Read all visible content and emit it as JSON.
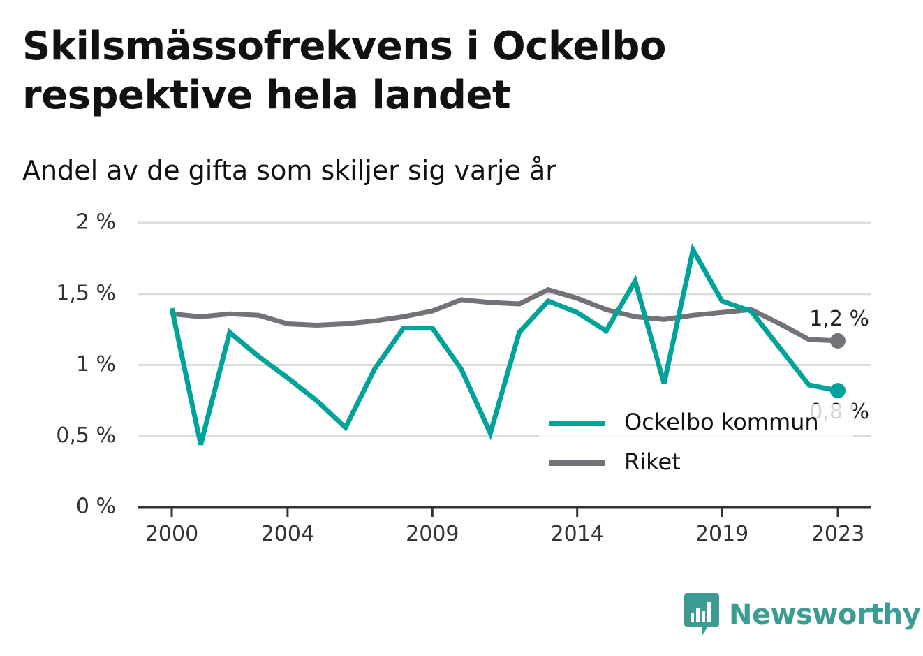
{
  "title": "Skilsmässofrekvens i Ockelbo respektive hela landet",
  "subtitle": "Andel av de gifta som skiljer sig varje år",
  "brand": {
    "name": "Newsworthy",
    "logo_icon": "bar-chart-speech-bubble-icon"
  },
  "colors": {
    "ockelbo": "#00a39a",
    "riket": "#737278",
    "grid": "#dcdcdc",
    "axis": "#333333",
    "brand": "#3c9c94"
  },
  "chart_data": {
    "type": "line",
    "title": "Skilsmässofrekvens i Ockelbo respektive hela landet",
    "subtitle": "Andel av de gifta som skiljer sig varje år",
    "xlabel": "",
    "ylabel": "",
    "x": [
      2000,
      2001,
      2002,
      2003,
      2004,
      2005,
      2006,
      2007,
      2008,
      2009,
      2010,
      2011,
      2012,
      2013,
      2014,
      2015,
      2016,
      2017,
      2018,
      2019,
      2020,
      2021,
      2022,
      2023
    ],
    "x_ticks": [
      2000,
      2004,
      2009,
      2014,
      2019,
      2023
    ],
    "x_tick_labels": [
      "2000",
      "2004",
      "2009",
      "2014",
      "2019",
      "2023"
    ],
    "ylim": [
      0,
      2
    ],
    "y_ticks": [
      0,
      0.5,
      1,
      1.5,
      2
    ],
    "y_tick_labels": [
      "0 %",
      "0,5 %",
      "1 %",
      "1,5 %",
      "2 %"
    ],
    "grid": true,
    "legend_position": "bottom-right",
    "series": [
      {
        "name": "Ockelbo kommun",
        "color": "#00a39a",
        "values": [
          1.4,
          0.44,
          1.23,
          1.06,
          0.91,
          0.75,
          0.56,
          0.97,
          1.26,
          1.26,
          0.97,
          0.52,
          1.23,
          1.45,
          1.37,
          1.24,
          1.59,
          0.87,
          1.81,
          1.45,
          1.38,
          1.12,
          0.86,
          0.82
        ],
        "end_label": "0,8 %"
      },
      {
        "name": "Riket",
        "color": "#737278",
        "values": [
          1.36,
          1.34,
          1.36,
          1.35,
          1.29,
          1.28,
          1.29,
          1.31,
          1.34,
          1.38,
          1.46,
          1.44,
          1.43,
          1.53,
          1.47,
          1.39,
          1.34,
          1.32,
          1.35,
          1.37,
          1.39,
          1.29,
          1.18,
          1.17
        ],
        "end_label": "1,2 %"
      }
    ]
  }
}
